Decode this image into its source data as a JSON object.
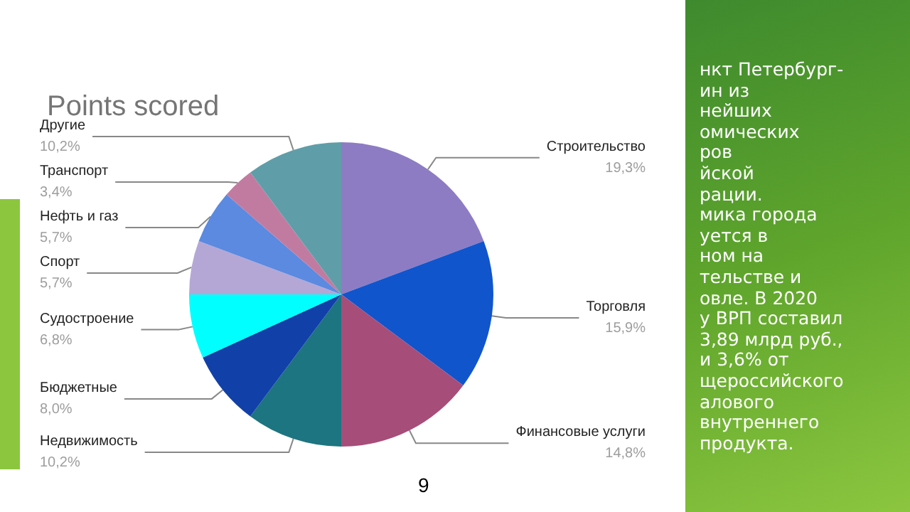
{
  "chart_data": {
    "type": "pie",
    "title": "Points scored",
    "categories": [
      "Строительство",
      "Торговля",
      "Финансовые услуги",
      "Недвижимость",
      "Бюджетные",
      "Судостроение",
      "Спорт",
      "Нефть и газ",
      "Транспорт",
      "Другие"
    ],
    "values": [
      19.3,
      15.9,
      14.8,
      10.2,
      8.0,
      6.8,
      5.7,
      5.7,
      3.4,
      10.2
    ],
    "value_labels": [
      "19,3%",
      "15,9%",
      "14,8%",
      "10,2%",
      "8,0%",
      "6,8%",
      "5,7%",
      "5,7%",
      "3,4%",
      "10,2%"
    ],
    "colors": [
      "#8d7cc3",
      "#1155cc",
      "#a64d79",
      "#1c7580",
      "#1140a8",
      "#00ffff",
      "#b4a7d6",
      "#5b8ae0",
      "#c27ba0",
      "#5f9ea8"
    ],
    "annotations": [
      "нкт Петербург-\nин из\nнейших\nомических\nров\nйской\nрации.\nмика города\nуется в\nном на\nтельстве и\nовле. В 2020\nу ВРП составил\n3,89 млрд руб.,\nи 3,6% от\nщероссийского\nалового\nвнутреннего\nпродукта.",
      "9"
    ]
  }
}
